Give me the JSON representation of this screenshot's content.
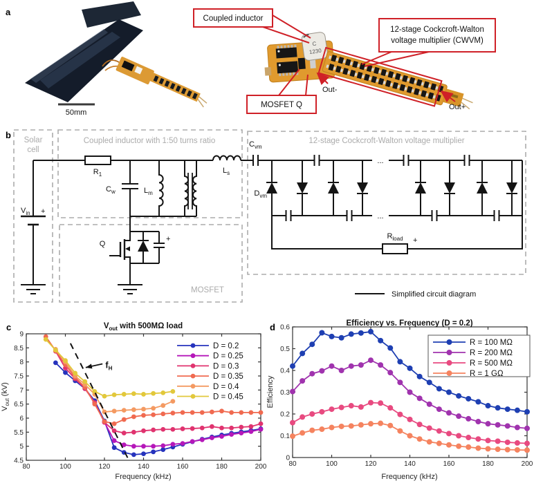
{
  "panel_a": {
    "label": "a",
    "scale_bar_label": "50mm",
    "inductor_mark_line1": "C",
    "inductor_mark_line2": "1230",
    "callout_coupled_inductor": "Coupled inductor",
    "callout_cwvm_line1": "12-stage Cockcroft-Walton",
    "callout_cwvm_line2": "voltage multiplier (CWVM)",
    "callout_mosfet": "MOSFET Q",
    "out_minus": "Out-",
    "out_plus": "Out+",
    "callout_color": "#cf2027"
  },
  "panel_b": {
    "label": "b",
    "section_solar_line1": "Solar",
    "section_solar_line2": "cell",
    "section_coupled": "Coupled inductor with 1:50 turns ratio",
    "section_cwvm": "12-stage Cockcroft-Walton voltage multiplier",
    "section_mosfet": "MOSFET",
    "comp_vin_base": "V",
    "comp_vin_sub": "in",
    "comp_r1_base": "R",
    "comp_r1_sub": "1",
    "comp_cw_base": "C",
    "comp_cw_sub": "w",
    "comp_lm_base": "L",
    "comp_lm_sub": "m",
    "comp_ls_base": "L",
    "comp_ls_sub": "s",
    "comp_cvm_base": "C",
    "comp_cvm_sub": "vm",
    "comp_dvm_base": "D",
    "comp_dvm_sub": "vm",
    "comp_q": "Q",
    "comp_rload_base": "R",
    "comp_rload_sub": "load",
    "plus_vin": "+",
    "plus_cap": "+",
    "plus_rload": "+",
    "ellipsis_top": "...",
    "ellipsis_bottom": "...",
    "legend_label": "Simplified circuit diagram"
  },
  "chart_data": [
    {
      "id": "c",
      "panel_label": "c",
      "type": "line",
      "title_parts": [
        {
          "text": "V"
        },
        {
          "text": "out",
          "sub": true
        },
        {
          "text": " with 500MΩ load"
        }
      ],
      "xlabel": "Frequency (kHz)",
      "ylabel_parts": [
        {
          "text": "V"
        },
        {
          "text": "out",
          "sub": true
        },
        {
          "text": " (kV)"
        }
      ],
      "xlim": [
        80,
        200
      ],
      "ylim": [
        4.5,
        9
      ],
      "xticks": [
        80,
        100,
        120,
        140,
        160,
        180,
        200
      ],
      "yticks": [
        4.5,
        5,
        5.5,
        6,
        6.5,
        7,
        7.5,
        8,
        8.5,
        9
      ],
      "grid": false,
      "legend": {
        "box": false,
        "position": "upper-right"
      },
      "series": [
        {
          "name": "D = 0.2",
          "color": "#2633bd",
          "x": [
            95,
            100,
            105,
            110,
            115,
            120,
            125,
            130,
            135,
            140,
            145,
            150,
            155,
            160,
            165,
            170,
            175,
            180,
            185,
            190,
            195,
            200
          ],
          "y": [
            7.97,
            7.62,
            7.33,
            7.05,
            6.62,
            5.9,
            4.95,
            4.78,
            4.7,
            4.73,
            4.8,
            4.88,
            4.97,
            5.07,
            5.16,
            5.25,
            5.33,
            5.4,
            5.46,
            5.51,
            5.56,
            5.62
          ]
        },
        {
          "name": "D = 0.25",
          "color": "#b517b9",
          "x": [
            100,
            105,
            110,
            115,
            120,
            125,
            130,
            135,
            140,
            145,
            150,
            155,
            160,
            165,
            170,
            175,
            180,
            185,
            190,
            195,
            200
          ],
          "y": [
            7.9,
            7.45,
            7.08,
            6.55,
            5.85,
            5.2,
            5.05,
            5.0,
            5.0,
            5.0,
            5.02,
            5.07,
            5.1,
            5.17,
            5.23,
            5.3,
            5.35,
            5.42,
            5.47,
            5.52,
            5.6
          ]
        },
        {
          "name": "D = 0.3",
          "color": "#e0336f",
          "x": [
            95,
            100,
            105,
            110,
            115,
            120,
            125,
            130,
            135,
            140,
            145,
            150,
            155,
            160,
            165,
            170,
            175,
            180,
            185,
            190,
            195,
            200
          ],
          "y": [
            8.38,
            7.78,
            7.4,
            7.05,
            6.55,
            5.85,
            5.55,
            5.47,
            5.5,
            5.55,
            5.58,
            5.6,
            5.6,
            5.62,
            5.63,
            5.65,
            5.7,
            5.65,
            5.65,
            5.68,
            5.7,
            5.8
          ]
        },
        {
          "name": "D = 0.35",
          "color": "#f06a50",
          "x": [
            90,
            95,
            100,
            105,
            110,
            115,
            120,
            125,
            130,
            135,
            140,
            145,
            150,
            155,
            160,
            165,
            170,
            175,
            180,
            185,
            190,
            195,
            200
          ],
          "y": [
            8.9,
            8.4,
            7.9,
            7.45,
            7.1,
            6.5,
            5.88,
            5.8,
            5.95,
            6.05,
            6.1,
            6.12,
            6.15,
            6.18,
            6.2,
            6.2,
            6.2,
            6.22,
            6.25,
            6.2,
            6.2,
            6.2,
            6.2
          ]
        },
        {
          "name": "D = 0.4",
          "color": "#f49a62",
          "x": [
            95,
            100,
            105,
            110,
            115,
            120,
            125,
            130,
            135,
            140,
            145,
            150,
            155
          ],
          "y": [
            8.45,
            8.0,
            7.5,
            7.2,
            6.85,
            6.22,
            6.25,
            6.28,
            6.3,
            6.32,
            6.35,
            6.45,
            6.6
          ]
        },
        {
          "name": "D = 0.45",
          "color": "#e2c83b",
          "x": [
            90,
            95,
            100,
            105,
            110,
            115,
            120,
            125,
            130,
            135,
            140,
            145,
            150,
            155
          ],
          "y": [
            8.8,
            8.42,
            8.05,
            7.6,
            7.3,
            6.95,
            6.78,
            6.83,
            6.85,
            6.87,
            6.85,
            6.88,
            6.9,
            6.95
          ]
        }
      ],
      "annotation": {
        "dashed_line": {
          "x": [
            102.6,
            132
          ],
          "y": [
            8.66,
            4.57
          ]
        },
        "arrow": {
          "x": [
            119,
            110.4
          ],
          "y": [
            7.93,
            7.8
          ]
        },
        "label_parts": [
          {
            "text": "f"
          },
          {
            "text": "H",
            "sub": true
          }
        ],
        "label_xy": [
          120.5,
          7.78
        ]
      }
    },
    {
      "id": "d",
      "panel_label": "d",
      "type": "line",
      "title_parts": [
        {
          "text": "Efficiency vs. Frequency (D = 0.2)"
        }
      ],
      "xlabel": "Frequency (kHz)",
      "ylabel_parts": [
        {
          "text": "Efficiency"
        }
      ],
      "xlim": [
        80,
        200
      ],
      "ylim": [
        0,
        0.6
      ],
      "xticks": [
        80,
        100,
        120,
        140,
        160,
        180,
        200
      ],
      "yticks": [
        0,
        0.1,
        0.2,
        0.3,
        0.4,
        0.5,
        0.6
      ],
      "grid": false,
      "legend": {
        "box": true,
        "position": "upper-right"
      },
      "series": [
        {
          "name": "R = 100 MΩ",
          "color": "#1e3fb2",
          "x": [
            80,
            85,
            90,
            95,
            100,
            105,
            110,
            115,
            120,
            125,
            130,
            135,
            140,
            145,
            150,
            155,
            160,
            165,
            170,
            175,
            180,
            185,
            190,
            195,
            200
          ],
          "y": [
            0.42,
            0.478,
            0.52,
            0.573,
            0.556,
            0.55,
            0.567,
            0.572,
            0.578,
            0.537,
            0.503,
            0.44,
            0.41,
            0.372,
            0.345,
            0.316,
            0.3,
            0.283,
            0.27,
            0.256,
            0.238,
            0.228,
            0.222,
            0.217,
            0.21
          ]
        },
        {
          "name": "R = 200 MΩ",
          "color": "#a033ae",
          "x": [
            80,
            85,
            90,
            95,
            100,
            105,
            110,
            115,
            120,
            125,
            130,
            135,
            140,
            145,
            150,
            155,
            160,
            165,
            170,
            175,
            180,
            185,
            190,
            195,
            200
          ],
          "y": [
            0.303,
            0.352,
            0.385,
            0.398,
            0.42,
            0.4,
            0.42,
            0.425,
            0.447,
            0.425,
            0.39,
            0.345,
            0.3,
            0.272,
            0.245,
            0.222,
            0.205,
            0.19,
            0.178,
            0.165,
            0.155,
            0.15,
            0.145,
            0.138,
            0.134
          ]
        },
        {
          "name": "R = 500 MΩ",
          "color": "#e84a80",
          "x": [
            80,
            85,
            90,
            95,
            100,
            105,
            110,
            115,
            120,
            125,
            130,
            135,
            140,
            145,
            150,
            155,
            160,
            165,
            170,
            175,
            180,
            185,
            190,
            195,
            200
          ],
          "y": [
            0.16,
            0.186,
            0.2,
            0.21,
            0.222,
            0.23,
            0.238,
            0.232,
            0.252,
            0.25,
            0.228,
            0.198,
            0.175,
            0.152,
            0.135,
            0.122,
            0.11,
            0.1,
            0.092,
            0.085,
            0.078,
            0.075,
            0.07,
            0.067,
            0.065
          ]
        },
        {
          "name": "R = 1 GΩ",
          "color": "#f5835f",
          "x": [
            80,
            85,
            90,
            95,
            100,
            105,
            110,
            115,
            120,
            125,
            130,
            135,
            140,
            145,
            150,
            155,
            160,
            165,
            170,
            175,
            180,
            185,
            190,
            195,
            200
          ],
          "y": [
            0.098,
            0.113,
            0.125,
            0.13,
            0.138,
            0.143,
            0.145,
            0.15,
            0.155,
            0.157,
            0.147,
            0.122,
            0.1,
            0.085,
            0.072,
            0.065,
            0.058,
            0.052,
            0.048,
            0.043,
            0.04,
            0.038,
            0.036,
            0.035,
            0.034
          ]
        }
      ]
    }
  ]
}
